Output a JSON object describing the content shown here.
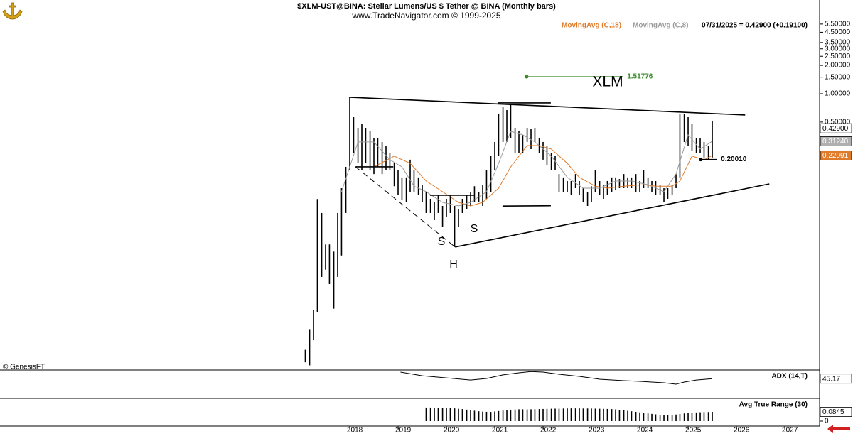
{
  "chart_data": [
    {
      "type": "bar_range",
      "title": "$XLM-UST@BINA:  Stellar Lumens/US $ Tether @ BINA  (Monthly bars)",
      "subtitle": "www.TradeNavigator.com © 1999-2025",
      "quote": "07/31/2025 = 0.42900 (+0.19100)",
      "credit": "© GenesisFT",
      "annotations": [
        "XLM",
        "S",
        "H",
        "S"
      ],
      "color": "#000000",
      "log_scale": true,
      "xlim": [
        2010.765,
        2027.72
      ],
      "ylim": [
        0.00118,
        6.09
      ],
      "yticks": [
        {
          "value": 5.5,
          "label": "5.50000"
        },
        {
          "value": 4.5,
          "label": "4.50000"
        },
        {
          "value": 3.5,
          "label": "3.50000"
        },
        {
          "value": 3.0,
          "label": "3.00000"
        },
        {
          "value": 2.5,
          "label": "2.50000"
        },
        {
          "value": 2.0,
          "label": "2.00000"
        },
        {
          "value": 1.5,
          "label": "1.50000"
        },
        {
          "value": 1.0,
          "label": "1.00000"
        },
        {
          "value": 0.5,
          "label": "0.50000"
        }
      ],
      "last": {
        "value": 0.429,
        "label": "0.42900"
      },
      "x": [
        2017.08,
        2017.17,
        2017.25,
        2017.33,
        2017.42,
        2017.5,
        2017.58,
        2017.67,
        2017.75,
        2017.83,
        2017.92,
        2018,
        2018.08,
        2018.17,
        2018.25,
        2018.33,
        2018.42,
        2018.5,
        2018.58,
        2018.67,
        2018.75,
        2018.83,
        2018.92,
        2019,
        2019.08,
        2019.17,
        2019.25,
        2019.33,
        2019.42,
        2019.5,
        2019.58,
        2019.67,
        2019.75,
        2019.83,
        2019.92,
        2020,
        2020.08,
        2020.17,
        2020.25,
        2020.33,
        2020.42,
        2020.5,
        2020.58,
        2020.67,
        2020.75,
        2020.83,
        2020.92,
        2021,
        2021.08,
        2021.17,
        2021.25,
        2021.33,
        2021.42,
        2021.5,
        2021.58,
        2021.67,
        2021.75,
        2021.83,
        2021.92,
        2022,
        2022.08,
        2022.17,
        2022.25,
        2022.33,
        2022.42,
        2022.5,
        2022.58,
        2022.67,
        2022.75,
        2022.83,
        2022.92,
        2023,
        2023.08,
        2023.17,
        2023.25,
        2023.33,
        2023.42,
        2023.5,
        2023.58,
        2023.67,
        2023.75,
        2023.83,
        2023.92,
        2024,
        2024.08,
        2024.17,
        2024.25,
        2024.33,
        2024.42,
        2024.5,
        2024.58,
        2024.67,
        2024.75,
        2024.83,
        2024.92,
        2025,
        2025.08,
        2025.17,
        2025.25,
        2025.33,
        2025.42,
        2025.5
      ],
      "high": [
        0.0019,
        0.0031,
        0.005,
        0.076,
        0.054,
        0.025,
        0.025,
        0.021,
        0.054,
        0.099,
        0.167,
        0.917,
        0.563,
        0.434,
        0.474,
        0.434,
        0.398,
        0.335,
        0.335,
        0.307,
        0.281,
        0.236,
        0.182,
        0.153,
        0.129,
        0.129,
        0.199,
        0.153,
        0.129,
        0.108,
        0.0909,
        0.0764,
        0.07,
        0.0833,
        0.0642,
        0.0764,
        0.0833,
        0.0642,
        0.0589,
        0.0764,
        0.0833,
        0.0909,
        0.104,
        0.0909,
        0.108,
        0.153,
        0.217,
        0.307,
        0.615,
        0.731,
        0.67,
        0.76,
        0.434,
        0.398,
        0.365,
        0.434,
        0.42,
        0.434,
        0.335,
        0.307,
        0.281,
        0.236,
        0.217,
        0.14,
        0.129,
        0.118,
        0.118,
        0.14,
        0.118,
        0.0991,
        0.0909,
        0.104,
        0.153,
        0.118,
        0.108,
        0.118,
        0.129,
        0.129,
        0.124,
        0.14,
        0.129,
        0.129,
        0.14,
        0.118,
        0.153,
        0.129,
        0.118,
        0.118,
        0.108,
        0.0991,
        0.0991,
        0.108,
        0.14,
        0.615,
        0.615,
        0.563,
        0.474,
        0.335,
        0.335,
        0.307,
        0.281,
        0.517
      ],
      "low": [
        0.0014,
        0.0013,
        0.0024,
        0.0048,
        0.0113,
        0.0135,
        0.0095,
        0.0052,
        0.0113,
        0.0191,
        0.054,
        0.153,
        0.236,
        0.182,
        0.153,
        0.182,
        0.153,
        0.14,
        0.167,
        0.14,
        0.153,
        0.153,
        0.104,
        0.0833,
        0.074,
        0.07,
        0.0909,
        0.0909,
        0.0833,
        0.07,
        0.054,
        0.054,
        0.0454,
        0.054,
        0.0382,
        0.0495,
        0.054,
        0.0235,
        0.0382,
        0.054,
        0.0589,
        0.0642,
        0.07,
        0.07,
        0.0642,
        0.0764,
        0.0909,
        0.153,
        0.217,
        0.307,
        0.307,
        0.335,
        0.236,
        0.236,
        0.236,
        0.307,
        0.258,
        0.307,
        0.236,
        0.199,
        0.176,
        0.153,
        0.153,
        0.0909,
        0.0909,
        0.0909,
        0.0833,
        0.0991,
        0.0833,
        0.07,
        0.0642,
        0.07,
        0.0909,
        0.0833,
        0.0764,
        0.0833,
        0.0909,
        0.094,
        0.0991,
        0.0991,
        0.0991,
        0.0991,
        0.0909,
        0.0909,
        0.0991,
        0.0991,
        0.0909,
        0.0833,
        0.0833,
        0.07,
        0.0764,
        0.0833,
        0.0991,
        0.129,
        0.307,
        0.281,
        0.249,
        0.236,
        0.236,
        0.21,
        0.199,
        0.21
      ],
      "series": [
        {
          "name": "MovingAvg (C,18)",
          "color": "#e07b2a",
          "x": [
            2018.5,
            2018.92,
            2019.25,
            2019.58,
            2019.92,
            2020.25,
            2020.5,
            2020.75,
            2021.08,
            2021.33,
            2021.67,
            2021.92,
            2022.17,
            2022.5,
            2022.75,
            2023.08,
            2023.33,
            2023.67,
            2024.08,
            2024.33,
            2024.67,
            2024.83,
            2025.08,
            2025.33,
            2025.5
          ],
          "values": [
            0.167,
            0.217,
            0.182,
            0.118,
            0.0909,
            0.07,
            0.0642,
            0.07,
            0.0991,
            0.167,
            0.281,
            0.281,
            0.258,
            0.182,
            0.129,
            0.104,
            0.0991,
            0.104,
            0.108,
            0.104,
            0.104,
            0.118,
            0.217,
            0.199,
            0.22091
          ],
          "last_label": "0.22091"
        },
        {
          "name": "MovingAvg (C,8)",
          "color": "#9a9a9a",
          "x": [
            2017.83,
            2018,
            2018.17,
            2018.5,
            2018.83,
            2019.08,
            2019.33,
            2019.58,
            2019.92,
            2020.25,
            2020.5,
            2020.83,
            2021.08,
            2021.33,
            2021.58,
            2021.83,
            2022.17,
            2022.5,
            2022.83,
            2023.17,
            2023.5,
            2023.83,
            2024.17,
            2024.5,
            2024.75,
            2025,
            2025.25,
            2025.5
          ],
          "values": [
            0.0909,
            0.167,
            0.307,
            0.307,
            0.199,
            0.167,
            0.104,
            0.0909,
            0.07,
            0.0642,
            0.07,
            0.0909,
            0.182,
            0.398,
            0.365,
            0.307,
            0.217,
            0.129,
            0.0991,
            0.0991,
            0.118,
            0.118,
            0.108,
            0.0909,
            0.14,
            0.365,
            0.258,
            0.3124
          ],
          "last_label": "0.31240"
        }
      ],
      "trendlines": [
        {
          "x": [
            2017.99,
            2026.18
          ],
          "y": [
            0.917,
            0.594
          ],
          "dash": false
        },
        {
          "x": [
            2021.06,
            2022.16
          ],
          "y": [
            0.798,
            0.798
          ],
          "dash": false
        },
        {
          "x": [
            2020.18,
            2026.68
          ],
          "y": [
            0.0235,
            0.11
          ],
          "dash": false
        },
        {
          "x": [
            2018.12,
            2020.18
          ],
          "y": [
            0.167,
            0.0235
          ],
          "dash": true
        },
        {
          "x": [
            2018.12,
            2018.9
          ],
          "y": [
            0.167,
            0.167
          ],
          "dash": false
        },
        {
          "x": [
            2019.66,
            2020.57
          ],
          "y": [
            0.0833,
            0.0833
          ],
          "dash": false
        },
        {
          "x": [
            2021.16,
            2022.16
          ],
          "y": [
            0.064,
            0.0645
          ],
          "dash": false
        }
      ],
      "levels": [
        {
          "x": [
            2021.66,
            2023.65
          ],
          "value": 1.51776,
          "color": "#3a8a2a"
        },
        {
          "x": [
            2025.26,
            2025.59
          ],
          "value": 0.2001,
          "label": "0.20010",
          "color": "#000000"
        }
      ]
    },
    {
      "type": "line",
      "title": "ADX (14,T)",
      "color": "#000000",
      "xlim": [
        2010.765,
        2027.72
      ],
      "ylim": [
        0,
        64
      ],
      "x": [
        2019.05,
        2019.5,
        2020,
        2020.5,
        2020.83,
        2021.17,
        2021.5,
        2021.75,
        2022,
        2022.33,
        2022.75,
        2023.17,
        2023.67,
        2024,
        2024.5,
        2024.75,
        2024.92,
        2025.17,
        2025.5
      ],
      "values": [
        60.6,
        52,
        47,
        42,
        45.5,
        54,
        59,
        62,
        60.6,
        55.6,
        50.5,
        43.8,
        40.4,
        38.7,
        35.4,
        32,
        37,
        42,
        45.17
      ]
    },
    {
      "type": "bar",
      "title": "Avg True Range (30)",
      "color": "#000000",
      "xlim": [
        2010.765,
        2027.72
      ],
      "ylim": [
        0,
        0.2016
      ],
      "yticks": [
        0
      ],
      "xticks": [
        2018,
        2019,
        2020,
        2021,
        2022,
        2023,
        2024,
        2025,
        2026,
        2027
      ],
      "x": [
        2019.58,
        2019.67,
        2019.75,
        2019.83,
        2019.92,
        2020,
        2020.08,
        2020.17,
        2020.25,
        2020.33,
        2020.42,
        2020.5,
        2020.58,
        2020.67,
        2020.75,
        2020.83,
        2020.92,
        2021,
        2021.08,
        2021.17,
        2021.25,
        2021.33,
        2021.42,
        2021.5,
        2021.58,
        2021.67,
        2021.75,
        2021.83,
        2021.92,
        2022,
        2022.08,
        2022.17,
        2022.25,
        2022.33,
        2022.42,
        2022.5,
        2022.58,
        2022.67,
        2022.75,
        2022.83,
        2022.92,
        2023,
        2023.08,
        2023.17,
        2023.25,
        2023.33,
        2023.42,
        2023.5,
        2023.58,
        2023.67,
        2023.75,
        2023.83,
        2023.92,
        2024,
        2024.08,
        2024.17,
        2024.25,
        2024.33,
        2024.42,
        2024.5,
        2024.58,
        2024.67,
        2024.75,
        2024.83,
        2024.92,
        2025,
        2025.08,
        2025.17,
        2025.25,
        2025.33,
        2025.42,
        2025.5
      ],
      "values": [
        0.124,
        0.124,
        0.123,
        0.122,
        0.121,
        0.12,
        0.118,
        0.116,
        0.113,
        0.11,
        0.105,
        0.1,
        0.095,
        0.09,
        0.087,
        0.085,
        0.084,
        0.088,
        0.092,
        0.097,
        0.1,
        0.103,
        0.106,
        0.108,
        0.108,
        0.107,
        0.108,
        0.109,
        0.11,
        0.111,
        0.112,
        0.113,
        0.114,
        0.114,
        0.115,
        0.116,
        0.116,
        0.116,
        0.116,
        0.115,
        0.115,
        0.115,
        0.114,
        0.113,
        0.112,
        0.111,
        0.11,
        0.107,
        0.103,
        0.098,
        0.094,
        0.09,
        0.085,
        0.08,
        0.075,
        0.07,
        0.066,
        0.062,
        0.058,
        0.055,
        0.053,
        0.055,
        0.06,
        0.065,
        0.07,
        0.074,
        0.077,
        0.079,
        0.081,
        0.082,
        0.083,
        0.0845
      ]
    }
  ]
}
